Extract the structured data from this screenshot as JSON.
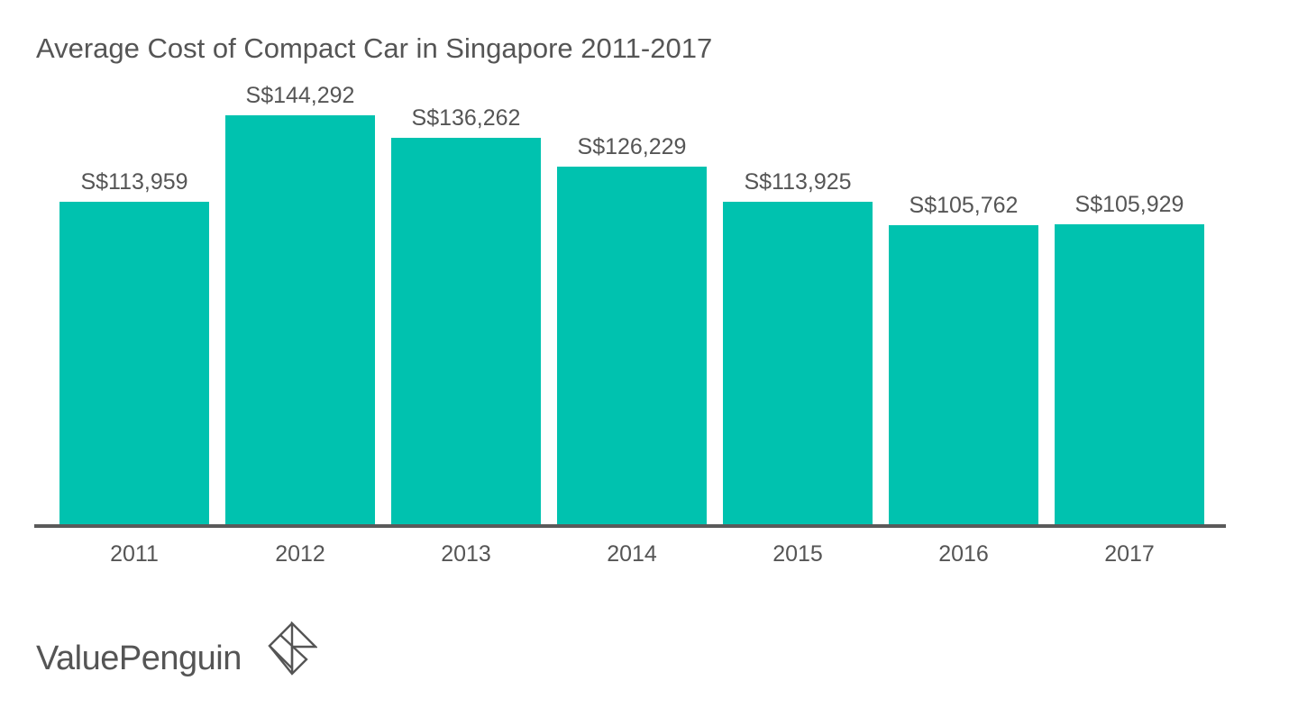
{
  "title": "Average Cost of Compact Car in Singapore 2011-2017",
  "brand": {
    "name": "ValuePenguin",
    "icon": "valuepenguin-logo-icon"
  },
  "colors": {
    "bar": "#00c2af",
    "text": "#555555",
    "axis": "#5a5a5a"
  },
  "chart_data": {
    "type": "bar",
    "title": "Average Cost of Compact Car in Singapore 2011-2017",
    "xlabel": "",
    "ylabel": "",
    "categories": [
      "2011",
      "2012",
      "2013",
      "2014",
      "2015",
      "2016",
      "2017"
    ],
    "values": [
      113959,
      144292,
      136262,
      126229,
      113925,
      105762,
      105929
    ],
    "value_labels": [
      "S$113,959",
      "S$144,292",
      "S$136,262",
      "S$126,229",
      "S$113,925",
      "S$105,762",
      "S$105,929"
    ],
    "ylim": [
      0,
      144292
    ],
    "grid": false,
    "legend": null
  }
}
